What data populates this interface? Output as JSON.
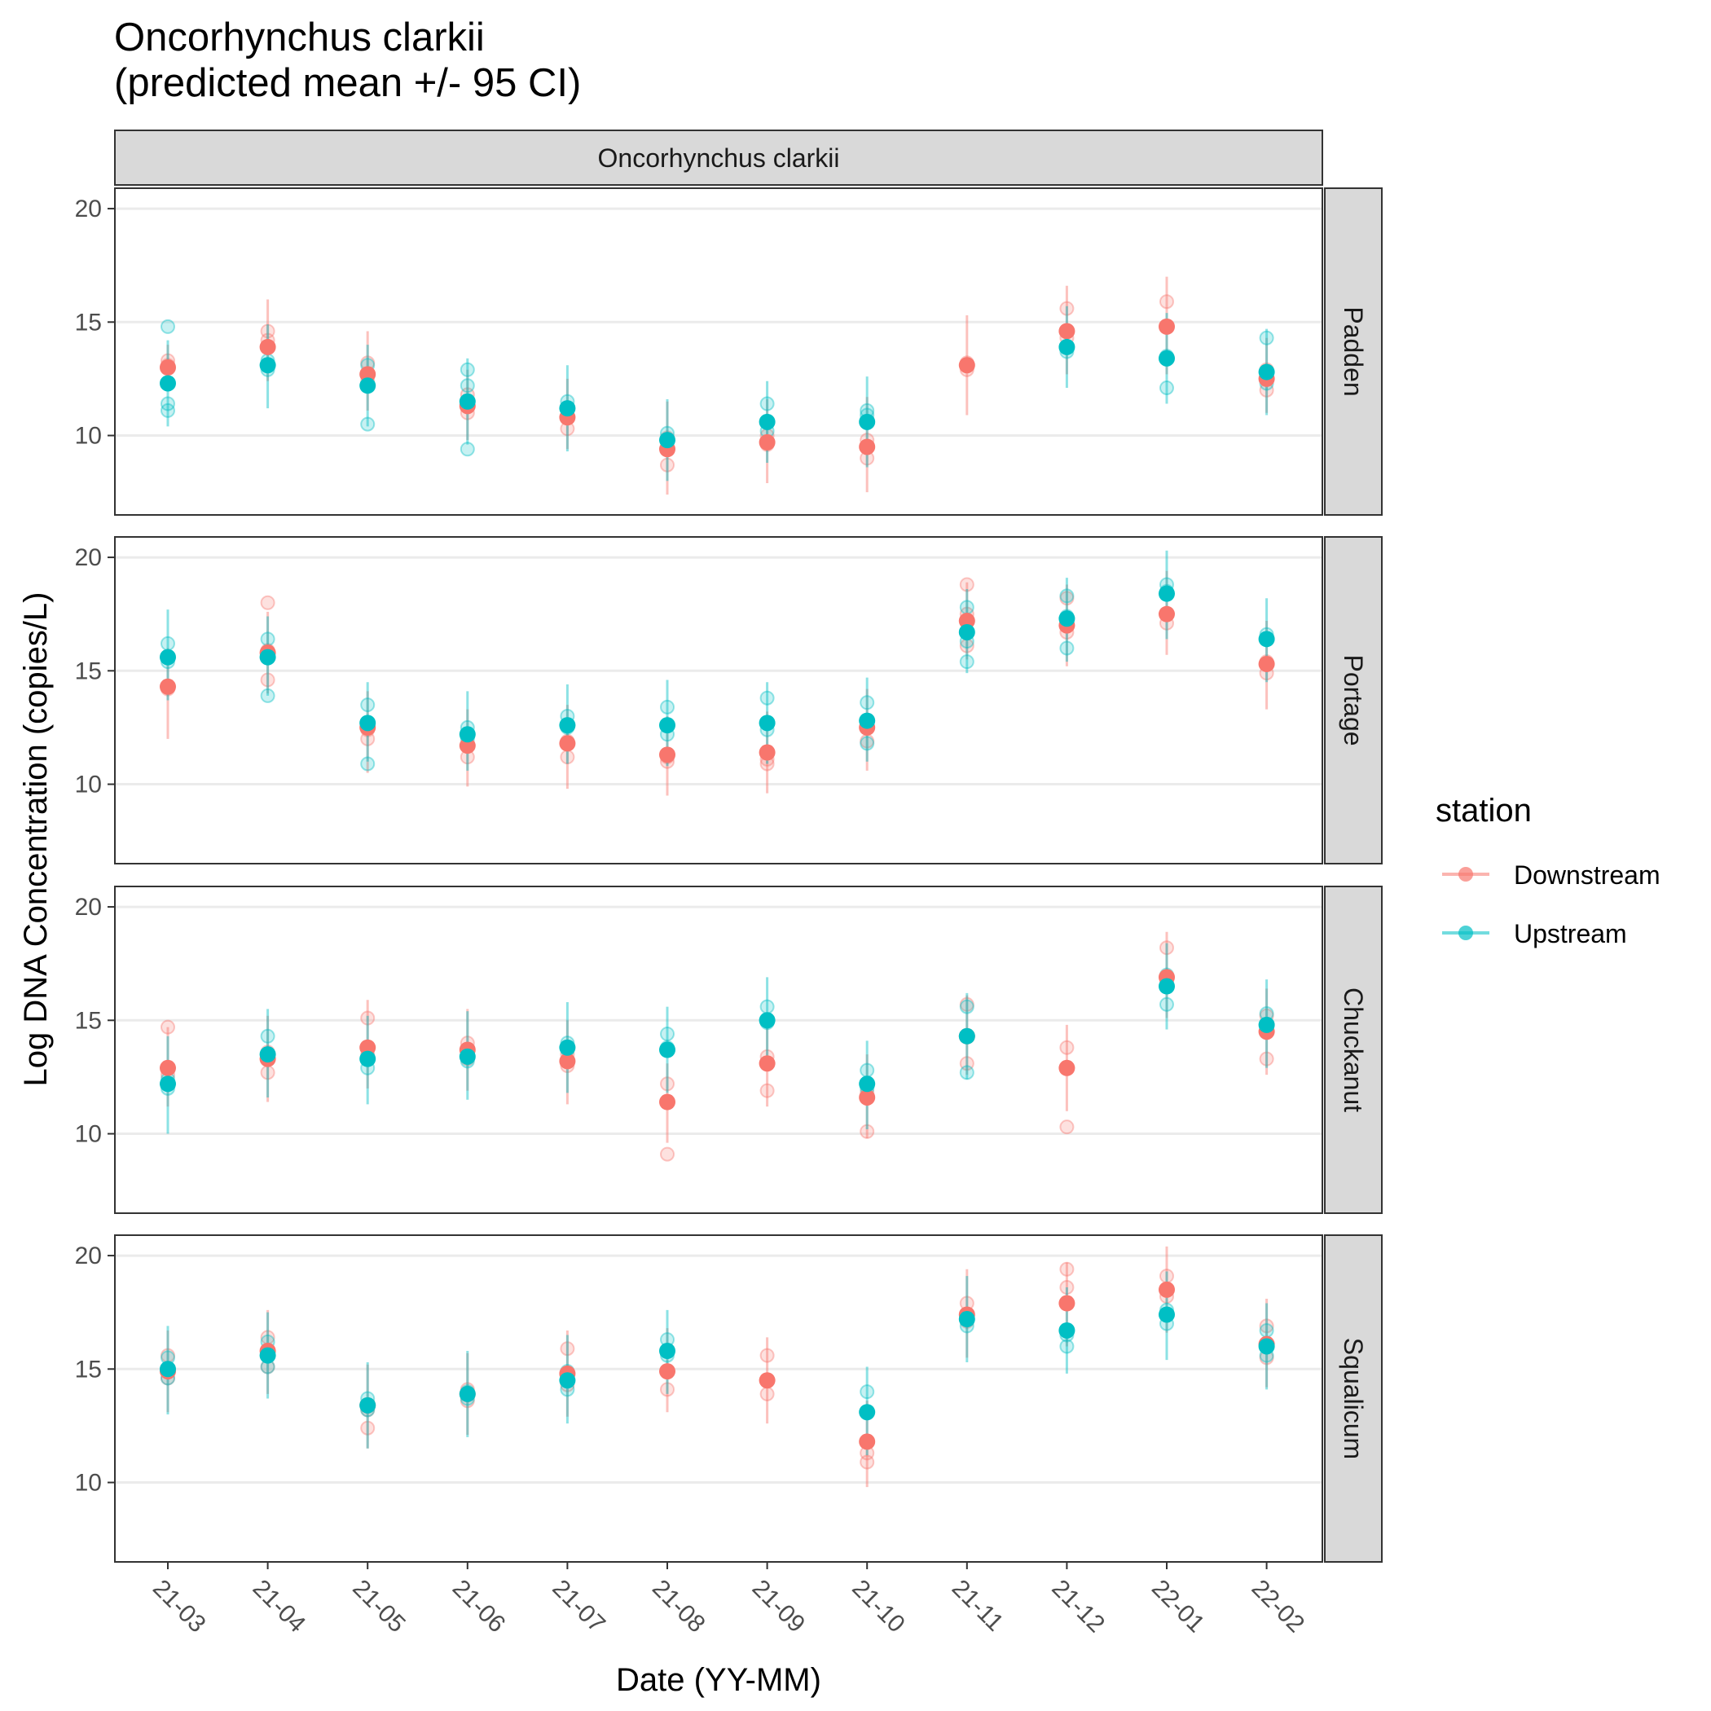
{
  "chart_data": {
    "type": "scatter",
    "title_line1": "Oncorhynchus clarkii",
    "title_line2": "(predicted mean +/- 95 CI)",
    "column_strip": "Oncorhynchus clarkii",
    "xlabel": "Date (YY-MM)",
    "ylabel": "Log DNA Concentration (copies/L)",
    "categories": [
      "21-03",
      "21-04",
      "21-05",
      "21-06",
      "21-07",
      "21-08",
      "21-09",
      "21-10",
      "21-11",
      "21-12",
      "22-01",
      "22-02"
    ],
    "yticks": [
      10,
      15,
      20
    ],
    "ylim": [
      6.5,
      20.9
    ],
    "grid": true,
    "legend": {
      "title": "station",
      "position": "right",
      "entries": [
        "Downstream",
        "Upstream"
      ]
    },
    "series_colors": {
      "Downstream": "#F8766D",
      "Upstream": "#00BFC4"
    },
    "panels": [
      {
        "name": "Padden",
        "Downstream": {
          "mean": [
            13.0,
            13.9,
            12.7,
            11.3,
            10.8,
            9.4,
            9.7,
            9.5,
            13.1,
            14.6,
            14.8,
            12.5
          ],
          "lower": [
            12.0,
            12.4,
            11.1,
            9.8,
            9.4,
            7.4,
            7.9,
            7.5,
            10.9,
            12.7,
            12.7,
            11.0
          ],
          "upper": [
            14.0,
            16.0,
            14.6,
            12.9,
            12.5,
            11.5,
            11.6,
            11.7,
            15.3,
            16.6,
            17.0,
            14.3
          ],
          "replicates": [
            [
              13.3,
              13.1
            ],
            [
              14.6,
              14.2
            ],
            [
              13.2,
              12.4
            ],
            [
              11.8,
              11.0
            ],
            [
              11.2,
              10.3
            ],
            [
              9.9,
              8.7
            ],
            [
              10.0,
              9.6
            ],
            [
              9.8,
              9.0
            ],
            [
              13.2,
              12.9
            ],
            [
              15.6,
              14.3
            ],
            [
              15.9,
              14.8
            ],
            [
              12.9,
              12.0
            ]
          ]
        },
        "Upstream": {
          "mean": [
            12.3,
            13.1,
            12.2,
            11.5,
            11.2,
            9.8,
            10.6,
            10.6,
            null,
            13.9,
            13.4,
            12.8
          ],
          "lower": [
            10.4,
            11.2,
            10.4,
            9.6,
            9.3,
            8.0,
            8.8,
            8.6,
            null,
            12.1,
            11.4,
            10.9
          ],
          "upper": [
            14.2,
            14.9,
            14.0,
            13.4,
            13.1,
            11.6,
            12.4,
            12.6,
            null,
            15.7,
            15.4,
            14.7
          ],
          "replicates": [
            [
              14.8,
              11.4,
              11.1
            ],
            [
              13.3,
              12.9
            ],
            [
              13.1,
              10.5
            ],
            [
              12.9,
              12.2,
              9.4
            ],
            [
              11.5,
              11.2
            ],
            [
              10.1,
              9.7
            ],
            [
              11.4,
              10.2
            ],
            [
              11.1,
              10.9
            ],
            [],
            [
              13.7,
              13.9
            ],
            [
              13.5,
              12.1
            ],
            [
              14.3,
              12.3
            ]
          ]
        }
      },
      {
        "name": "Portage",
        "Downstream": {
          "mean": [
            14.3,
            15.8,
            12.5,
            11.7,
            11.8,
            11.3,
            11.4,
            12.5,
            17.2,
            17.0,
            17.5,
            15.3
          ],
          "lower": [
            12.0,
            14.0,
            10.5,
            9.9,
            9.8,
            9.5,
            9.6,
            10.6,
            15.5,
            15.2,
            15.7,
            13.3
          ],
          "upper": [
            16.0,
            17.6,
            14.1,
            13.3,
            13.5,
            13.0,
            13.2,
            14.2,
            18.9,
            18.8,
            19.4,
            17.2
          ],
          "replicates": [
            [
              14.3,
              14.2
            ],
            [
              18.0,
              14.6,
              15.9
            ],
            [
              12.4,
              12.0
            ],
            [
              11.2,
              11.7
            ],
            [
              11.2,
              11.9
            ],
            [
              11.0,
              11.2
            ],
            [
              11.1,
              10.9
            ],
            [
              11.9,
              12.8
            ],
            [
              18.8,
              17.5,
              16.1
            ],
            [
              18.2,
              16.7
            ],
            [
              17.1,
              17.5
            ],
            [
              15.4,
              14.9
            ]
          ]
        },
        "Upstream": {
          "mean": [
            15.6,
            15.6,
            12.7,
            12.2,
            12.6,
            12.6,
            12.7,
            12.8,
            16.7,
            17.3,
            18.4,
            16.4
          ],
          "lower": [
            13.7,
            13.9,
            11.0,
            10.6,
            10.9,
            10.8,
            10.9,
            11.0,
            14.9,
            15.4,
            16.4,
            14.5
          ],
          "upper": [
            17.7,
            17.4,
            14.5,
            14.1,
            14.4,
            14.6,
            14.5,
            14.7,
            18.6,
            19.1,
            20.3,
            18.2
          ],
          "replicates": [
            [
              16.2,
              15.4
            ],
            [
              16.4,
              13.9
            ],
            [
              13.5,
              10.9
            ],
            [
              12.5,
              12.0
            ],
            [
              13.0,
              12.5
            ],
            [
              13.4,
              12.2
            ],
            [
              13.8,
              12.4
            ],
            [
              13.6,
              11.8
            ],
            [
              17.8,
              16.3,
              15.4
            ],
            [
              18.3,
              17.4,
              16.0
            ],
            [
              18.8,
              18.5
            ],
            [
              16.6,
              16.4
            ]
          ]
        }
      },
      {
        "name": "Chuckanut",
        "Downstream": {
          "mean": [
            12.9,
            13.3,
            13.8,
            13.7,
            13.2,
            11.4,
            13.1,
            11.6,
            14.3,
            12.9,
            16.9,
            14.5
          ],
          "lower": [
            11.2,
            11.4,
            12.0,
            11.9,
            11.3,
            9.6,
            11.2,
            9.8,
            12.6,
            11.0,
            15.1,
            12.6
          ],
          "upper": [
            14.7,
            15.2,
            15.9,
            15.5,
            15.0,
            13.1,
            14.9,
            13.5,
            16.1,
            14.8,
            18.9,
            16.4
          ],
          "replicates": [
            [
              14.7,
              12.6
            ],
            [
              12.7,
              13.6
            ],
            [
              15.1,
              13.5
            ],
            [
              14.0,
              13.3
            ],
            [
              13.0,
              13.5
            ],
            [
              12.2,
              9.1
            ],
            [
              13.4,
              11.9
            ],
            [
              10.1,
              11.8
            ],
            [
              15.7,
              13.1
            ],
            [
              13.8,
              10.3
            ],
            [
              18.2,
              16.7
            ],
            [
              15.2,
              13.3
            ]
          ]
        },
        "Upstream": {
          "mean": [
            12.2,
            13.5,
            13.3,
            13.4,
            13.8,
            13.7,
            15.0,
            12.2,
            14.3,
            null,
            16.5,
            14.8
          ],
          "lower": [
            10.0,
            11.6,
            11.3,
            11.5,
            11.8,
            11.8,
            13.1,
            10.2,
            12.4,
            null,
            14.6,
            12.9
          ],
          "upper": [
            14.3,
            15.5,
            15.2,
            15.4,
            15.8,
            15.6,
            16.9,
            14.1,
            16.2,
            null,
            18.4,
            16.8
          ],
          "replicates": [
            [
              12.0,
              12.4
            ],
            [
              14.3,
              13.3
            ],
            [
              13.4,
              12.9
            ],
            [
              13.7,
              13.2
            ],
            [
              14.0,
              13.7
            ],
            [
              14.4,
              13.8
            ],
            [
              15.6,
              14.9
            ],
            [
              12.8,
              12.0
            ],
            [
              15.6,
              12.7
            ],
            [],
            [
              17.0,
              15.7
            ],
            [
              15.3,
              14.6
            ]
          ]
        }
      },
      {
        "name": "Squalicum",
        "Downstream": {
          "mean": [
            14.9,
            15.8,
            13.4,
            13.9,
            14.8,
            14.9,
            14.5,
            11.8,
            17.4,
            17.9,
            18.5,
            16.1
          ],
          "lower": [
            13.1,
            13.9,
            11.5,
            12.1,
            12.9,
            13.1,
            12.6,
            9.8,
            15.5,
            16.0,
            16.6,
            14.2
          ],
          "upper": [
            16.7,
            17.6,
            15.2,
            15.7,
            16.7,
            16.8,
            16.4,
            13.6,
            19.4,
            19.7,
            20.4,
            18.1
          ],
          "replicates": [
            [
              15.6,
              14.6
            ],
            [
              16.4,
              15.1
            ],
            [
              13.2,
              12.4
            ],
            [
              14.1,
              13.6
            ],
            [
              15.9,
              14.3
            ],
            [
              14.9,
              14.1
            ],
            [
              15.6,
              13.9
            ],
            [
              11.3,
              10.9
            ],
            [
              17.9,
              17.1
            ],
            [
              19.4,
              18.6
            ],
            [
              19.1,
              18.2
            ],
            [
              16.9,
              15.5
            ]
          ]
        },
        "Upstream": {
          "mean": [
            15.0,
            15.6,
            13.4,
            13.9,
            14.5,
            15.8,
            null,
            13.1,
            17.2,
            16.7,
            17.4,
            16.0
          ],
          "lower": [
            13.0,
            13.7,
            11.5,
            12.0,
            12.6,
            13.9,
            null,
            11.2,
            15.3,
            14.8,
            15.4,
            14.1
          ],
          "upper": [
            16.9,
            17.5,
            15.3,
            15.8,
            16.5,
            17.6,
            null,
            15.1,
            19.1,
            18.6,
            19.3,
            17.9
          ],
          "replicates": [
            [
              15.5,
              14.6
            ],
            [
              16.2,
              15.1
            ],
            [
              13.7,
              13.2
            ],
            [
              14.0,
              13.7
            ],
            [
              14.9,
              14.1
            ],
            [
              16.3,
              15.6
            ],
            [],
            [
              14.0,
              11.8
            ],
            [
              17.3,
              16.9
            ],
            [
              16.5,
              16.0
            ],
            [
              17.0,
              17.6
            ],
            [
              16.7,
              15.6
            ]
          ]
        }
      }
    ]
  }
}
